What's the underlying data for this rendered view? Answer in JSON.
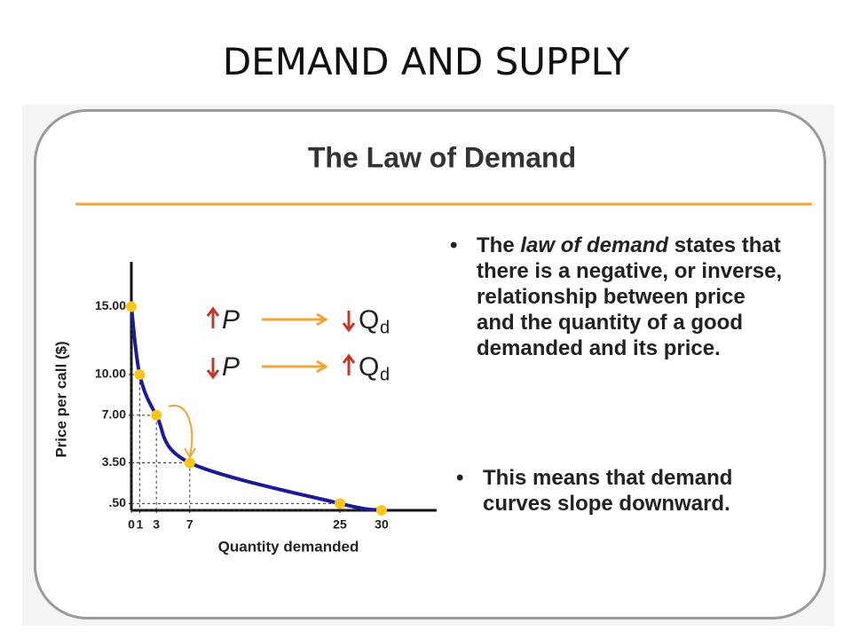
{
  "title": "DEMAND AND SUPPLY",
  "panel": {
    "heading": "The Law of Demand",
    "rules": [
      {
        "p": "P",
        "q": "Q",
        "sub": "d"
      },
      {
        "p": "P",
        "q": "Q",
        "sub": "d"
      }
    ],
    "bullets": [
      [
        "The ",
        "law of demand",
        " states that there is a negative, or inverse, relationship between price and the quantity of a good demanded and its price."
      ],
      [
        "This means that demand curves slope downward."
      ]
    ]
  },
  "chart_data": {
    "type": "line",
    "x": [
      0,
      1,
      3,
      7,
      25,
      30
    ],
    "values": [
      15,
      10,
      7,
      3.5,
      0.5,
      0
    ],
    "xlabel": "Quantity demanded",
    "ylabel": "Price per call ($)",
    "xlim": [
      0,
      36.6
    ],
    "ylim": [
      0,
      18.3
    ],
    "xticks": [
      0,
      1,
      3,
      7,
      25,
      30
    ],
    "yticks": [
      {
        "value": 0.5,
        "label": ".50"
      },
      {
        "value": 3.5,
        "label": "3.50"
      },
      {
        "value": 7,
        "label": "7.00"
      },
      {
        "value": 10,
        "label": "10.00"
      },
      {
        "value": 15,
        "label": "15.00"
      }
    ],
    "color": "#1a1a96",
    "marker_color": "#f7c51e"
  }
}
